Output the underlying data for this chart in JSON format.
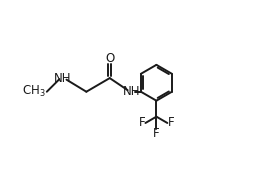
{
  "bg_color": "#ffffff",
  "line_color": "#1a1a1a",
  "line_width": 1.4,
  "font_size": 8.5,
  "figsize": [
    2.54,
    1.72
  ],
  "dpi": 100,
  "xlim": [
    0,
    10
  ],
  "ylim": [
    0,
    6.8
  ]
}
